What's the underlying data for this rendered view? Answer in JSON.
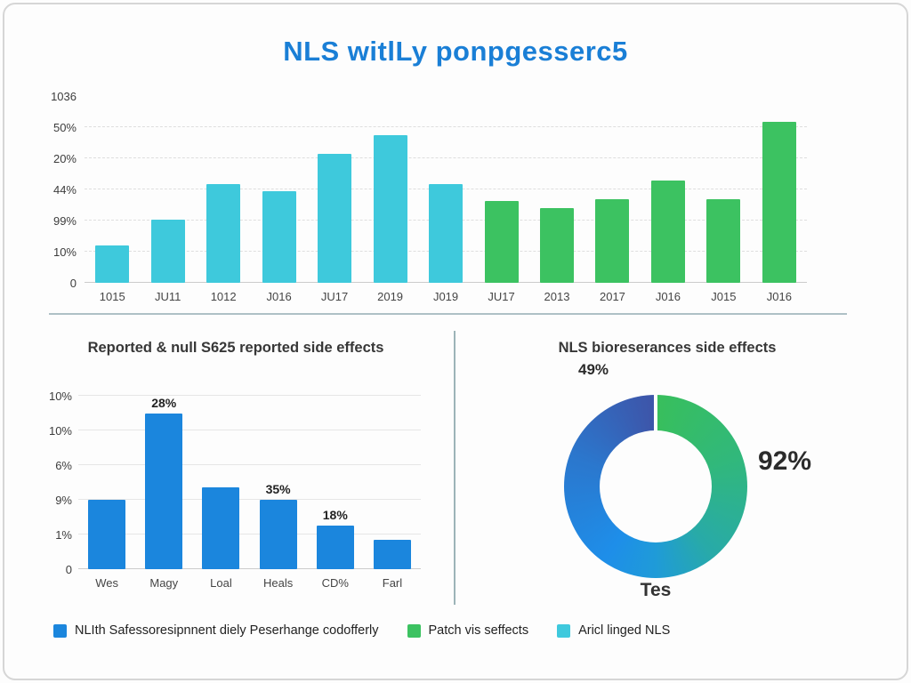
{
  "title": "NLS witlLy ponpgesserc5",
  "colors": {
    "cyan": "#3ec9dc",
    "green": "#3cc261",
    "blue": "#1b86dd",
    "title_blue": "#1a7fd6"
  },
  "chart_data": [
    {
      "id": "top_chart",
      "type": "bar",
      "title": "",
      "categories": [
        "1015",
        "JU11",
        "1012",
        "J016",
        "JU17",
        "2019",
        "J019",
        "JU17",
        "2013",
        "2017",
        "J016",
        "J015",
        "J016"
      ],
      "values": [
        20,
        34,
        53,
        49,
        69,
        79,
        53,
        44,
        40,
        45,
        55,
        45,
        86
      ],
      "values_unit": "percent of plot height (y-axis tick labels are non-numeric/garbled)",
      "bar_groups": [
        "cyan",
        "cyan",
        "cyan",
        "cyan",
        "cyan",
        "cyan",
        "cyan",
        "green",
        "green",
        "green",
        "green",
        "green",
        "green"
      ],
      "y_ticks_top_to_bottom": [
        "1036",
        "50%",
        "20%",
        "44%",
        "99%",
        "10%",
        "0"
      ],
      "ylim": [
        0,
        100
      ],
      "grid": true,
      "legend_position": "bottom"
    },
    {
      "id": "bottom_left_chart",
      "type": "bar",
      "title": "Reported & null S625 reported side effects",
      "categories": [
        "Wes",
        "Magy",
        "Loal",
        "Heals",
        "CD%",
        "Farl"
      ],
      "values": [
        40,
        94,
        47,
        40,
        25,
        17
      ],
      "values_unit": "percent of plot height (y-axis tick labels are non-numeric/garbled)",
      "bar_labels": [
        "",
        "28%",
        "",
        "35%",
        "18%",
        ""
      ],
      "bar_groups": [
        "blue",
        "blue",
        "blue",
        "blue",
        "blue",
        "blue"
      ],
      "y_ticks_top_to_bottom": [
        "10%",
        "10%",
        "6%",
        "9%",
        "1%",
        "0"
      ],
      "ylim": [
        0,
        100
      ],
      "grid": true,
      "legend_position": "none"
    },
    {
      "id": "donut_chart",
      "type": "pie",
      "title": "NLS bioreserances side effects",
      "slices": [
        {
          "name": "green-right-half",
          "value": 50,
          "label": "92%"
        },
        {
          "name": "blue-left-half",
          "value": 50,
          "label": "49%"
        }
      ],
      "labels": {
        "top_left": "49%",
        "right": "92%",
        "bottom": "Tes"
      },
      "legend_position": "none"
    }
  ],
  "legend": {
    "items": [
      {
        "color": "#1b86dd",
        "label": "NLIth Safessoresipnnent diely Peserhange codofferly"
      },
      {
        "color": "#3cc261",
        "label": "Patch vis seffects"
      },
      {
        "color": "#3fc9dd",
        "label": "Aricl linged NLS"
      }
    ]
  }
}
